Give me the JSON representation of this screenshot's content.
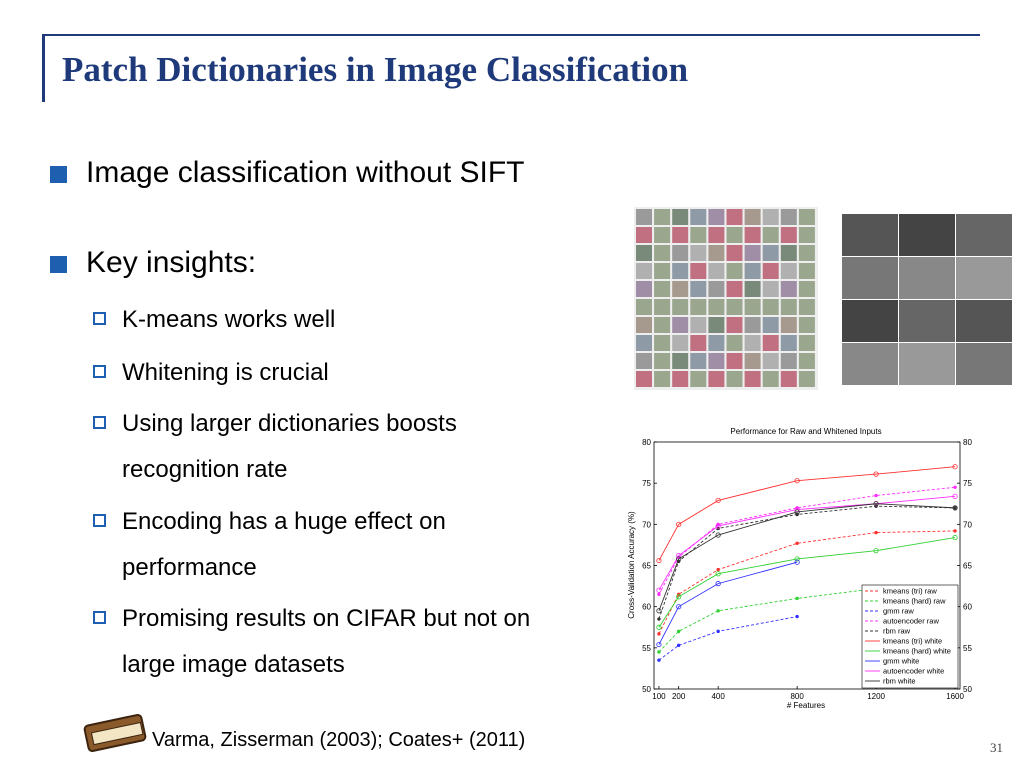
{
  "header": {
    "title": "Patch Dictionaries in Image Classification"
  },
  "bullets": [
    {
      "text": "Image classification without SIFT"
    },
    {
      "text": "Key insights:",
      "sub": [
        "K-means works well",
        "Whitening is crucial",
        "Using larger dictionaries boosts recognition rate",
        "Encoding has a huge effect on performance",
        "Promising results on CIFAR but not on large image datasets"
      ]
    }
  ],
  "footer": {
    "citation": "Varma, Zisserman (2003); Coates+ (2011)",
    "page": "31"
  },
  "chart_data": {
    "type": "line",
    "title": "Performance for Raw and Whitened Inputs",
    "x_label": "# Features",
    "y_label": "Cross-Validation Accuracy (%)",
    "x": [
      100,
      200,
      400,
      800,
      1200,
      1600
    ],
    "xlim": [
      75,
      1625
    ],
    "xticks": [
      100,
      200,
      400,
      800,
      1200,
      1600
    ],
    "ylim": [
      50,
      80
    ],
    "yticks": [
      50,
      55,
      60,
      65,
      70,
      75,
      80
    ],
    "y2lim": [
      50,
      80
    ],
    "y2ticks": [
      50,
      55,
      60,
      65,
      70,
      75,
      80
    ],
    "series": [
      {
        "name": "kmeans (tri) raw",
        "color": "#ff3030",
        "linestyle": "dashed",
        "values": [
          56.7,
          61.5,
          64.5,
          67.7,
          69.0,
          69.2
        ]
      },
      {
        "name": "kmeans (hard) raw",
        "color": "#30d030",
        "linestyle": "dashed",
        "values": [
          54.5,
          57.0,
          59.5,
          61.0,
          62.2,
          null
        ]
      },
      {
        "name": "gmm raw",
        "color": "#3030ff",
        "linestyle": "dashed",
        "values": [
          53.5,
          55.3,
          57.0,
          58.8,
          null,
          null
        ]
      },
      {
        "name": "autoencoder raw",
        "color": "#ff30ff",
        "linestyle": "dashed",
        "values": [
          61.5,
          66.0,
          70.0,
          72.0,
          73.5,
          74.5
        ]
      },
      {
        "name": "rbm raw",
        "color": "#333333",
        "linestyle": "dashed",
        "values": [
          58.5,
          65.5,
          69.5,
          71.2,
          72.2,
          72.0
        ]
      },
      {
        "name": "kmeans (tri) white",
        "color": "#ff3030",
        "linestyle": "solid",
        "values": [
          65.6,
          70.0,
          72.9,
          75.3,
          76.1,
          77.0
        ]
      },
      {
        "name": "kmeans (hard) white",
        "color": "#30d030",
        "linestyle": "solid",
        "values": [
          57.5,
          61.2,
          64.0,
          65.8,
          66.8,
          68.4
        ]
      },
      {
        "name": "gmm white",
        "color": "#3030ff",
        "linestyle": "solid",
        "values": [
          55.4,
          60.0,
          62.8,
          65.4,
          null,
          null
        ]
      },
      {
        "name": "autoencoder white",
        "color": "#ff30ff",
        "linestyle": "solid",
        "values": [
          62.0,
          66.2,
          69.8,
          71.8,
          72.5,
          73.4
        ]
      },
      {
        "name": "rbm white",
        "color": "#333333",
        "linestyle": "solid",
        "values": [
          59.5,
          65.8,
          68.7,
          71.5,
          72.5,
          72.0
        ]
      }
    ]
  }
}
